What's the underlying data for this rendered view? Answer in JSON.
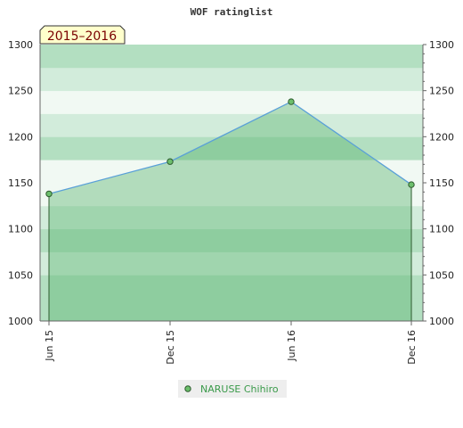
{
  "chart_data": {
    "type": "area",
    "title": "WOF ratinglist",
    "badge": "2015–2016",
    "categories": [
      "Jun 15",
      "Dec 15",
      "Jun 16",
      "Dec 16"
    ],
    "series": [
      {
        "name": "NARUSE Chihiro",
        "values": [
          1138,
          1173,
          1238,
          1148
        ]
      }
    ],
    "ylim": [
      1000,
      1300
    ],
    "yticks": [
      1000,
      1050,
      1100,
      1150,
      1200,
      1250,
      1300
    ],
    "ytick_labels": [
      "1000",
      "1050",
      "1100",
      "1150",
      "1200",
      "1250",
      "1300"
    ],
    "legend_position": "bottom-center",
    "grid": true,
    "colors": {
      "line": "#5aa0d8",
      "fill": "#5ab570",
      "marker": "#6cbf6c",
      "marker_stroke": "#2d5a2d",
      "band_a": "#b3dfc1",
      "band_b": "#d2ecdb",
      "band_c": "#f1f9f3",
      "badge_bg": "#ffffcc",
      "badge_text": "#7a0000",
      "legend_text": "#3a9a4a"
    }
  }
}
